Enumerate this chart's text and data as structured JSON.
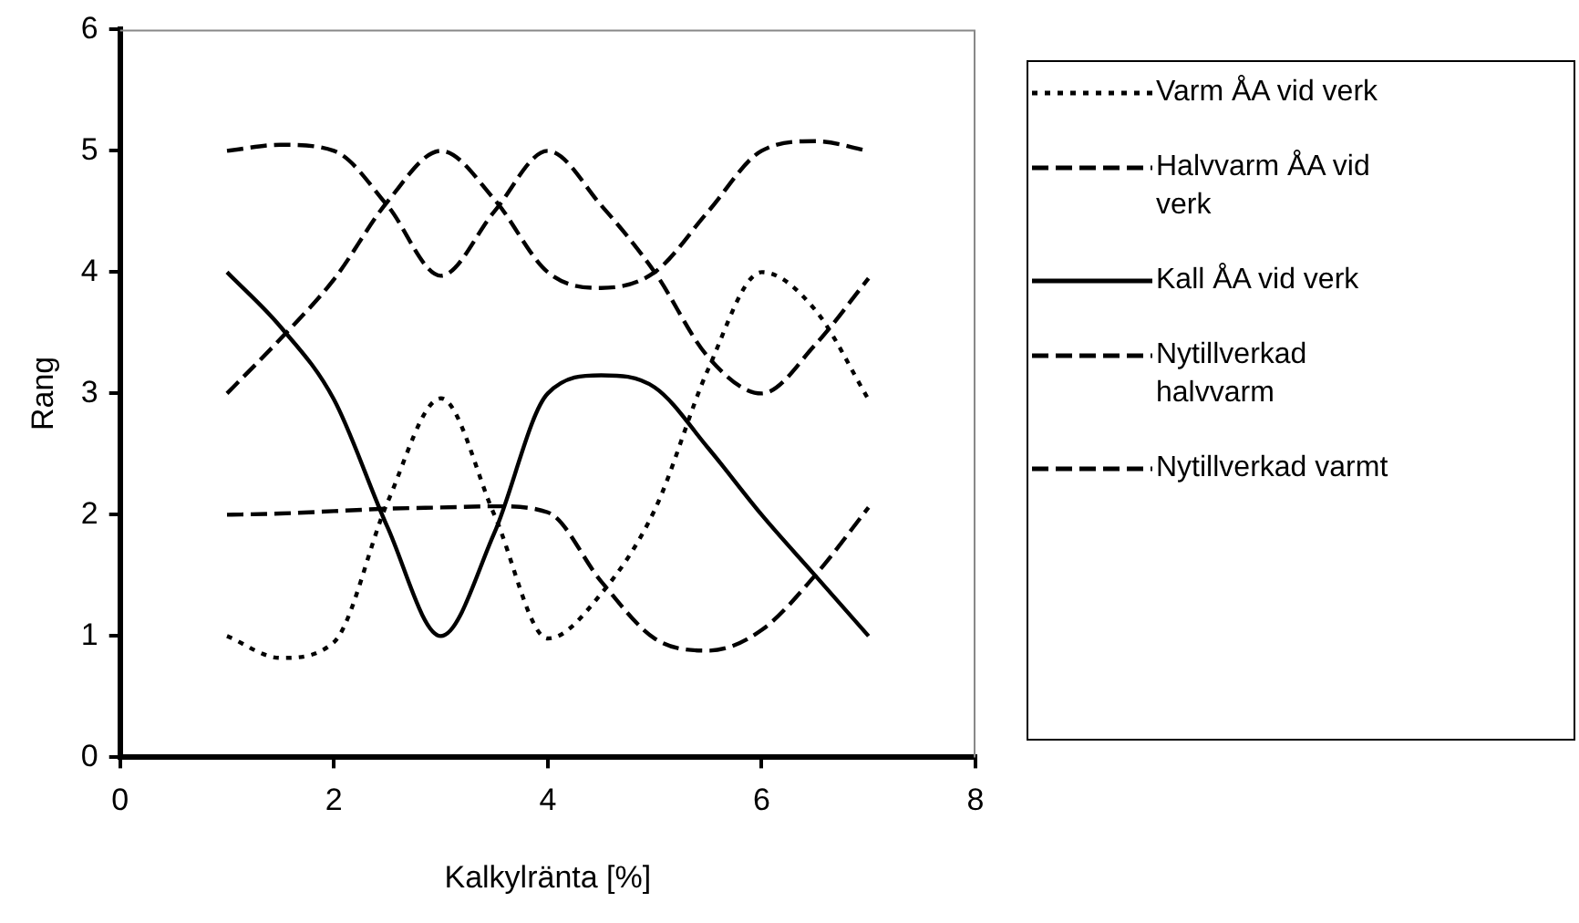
{
  "chart_data": {
    "type": "line",
    "xlabel": "Kalkylränta [%]",
    "ylabel": "Rang",
    "x": [
      1,
      1.5,
      2,
      2.5,
      3,
      3.5,
      4,
      4.5,
      5,
      5.5,
      6,
      6.5,
      7
    ],
    "xlim": [
      0,
      8
    ],
    "xticks": [
      0,
      2,
      4,
      6,
      8
    ],
    "ylim": [
      0,
      6
    ],
    "yticks": [
      0,
      1,
      2,
      3,
      4,
      5,
      6
    ],
    "grid": false,
    "legend": "right",
    "marker": "none",
    "series": [
      {
        "name": "Varm ÅA vid verk",
        "color": "#000000",
        "line_style": "dotted",
        "values": [
          1,
          0.82,
          0.95,
          2.1,
          2.96,
          2.0,
          0.98,
          1.35,
          2.04,
          3.2,
          4.0,
          3.69,
          2.95
        ]
      },
      {
        "name": "Halvvarm ÅA vid verk",
        "color": "#000000",
        "line_style": "dashed",
        "values": [
          2,
          2.01,
          2.03,
          2.05,
          2.06,
          2.07,
          2.02,
          1.45,
          0.98,
          0.88,
          1.05,
          1.5,
          2.06
        ]
      },
      {
        "name": "Kall ÅA vid verk",
        "color": "#000000",
        "line_style": "solid",
        "values": [
          4,
          3.55,
          2.95,
          1.9,
          1,
          1.85,
          3.0,
          3.15,
          3.05,
          2.55,
          2.0,
          1.5,
          1
        ]
      },
      {
        "name": "Nytillverkad halvvarm",
        "color": "#000000",
        "line_style": "dashed",
        "values": [
          5,
          5.05,
          5.0,
          4.55,
          3.97,
          4.5,
          5.0,
          4.55,
          4.0,
          3.3,
          3.0,
          3.4,
          3.95
        ]
      },
      {
        "name": "Nytillverkad varmt",
        "color": "#000000",
        "line_style": "dashed",
        "values": [
          3,
          3.45,
          3.94,
          4.58,
          5.0,
          4.6,
          4.0,
          3.87,
          4.0,
          4.5,
          5.0,
          5.08,
          5.0
        ]
      }
    ]
  }
}
